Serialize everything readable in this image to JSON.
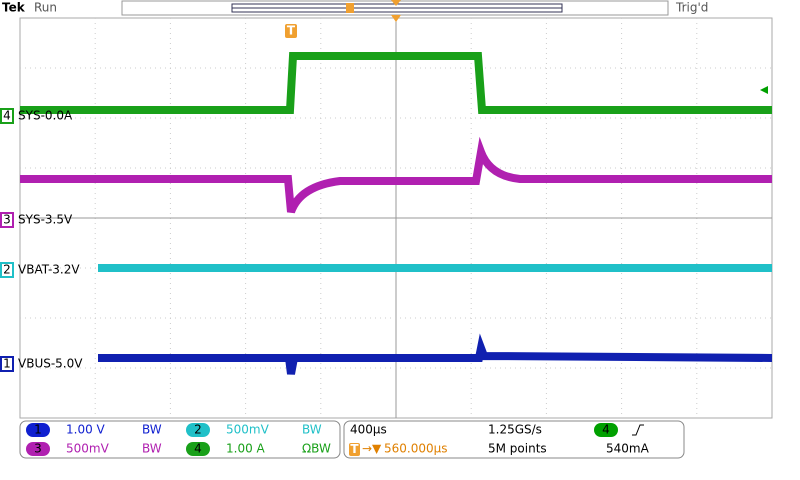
{
  "header": {
    "brand": "Tek",
    "status": "Run",
    "trigger_status": "Trig'd",
    "trigger_marker": "T"
  },
  "channel_markers": [
    {
      "number": "4",
      "label": "SYS-0.0A"
    },
    {
      "number": "3",
      "label": "SYS-3.5V"
    },
    {
      "number": "2",
      "label": "VBAT-3.2V"
    },
    {
      "number": "1",
      "label": "VBUS-5.0V"
    }
  ],
  "vertical": [
    {
      "number": "1",
      "scale": "1.00 V",
      "bw": "BW"
    },
    {
      "number": "2",
      "scale": "500mV",
      "bw": "BW"
    },
    {
      "number": "3",
      "scale": "500mV",
      "bw": "BW"
    },
    {
      "number": "4",
      "scale": "1.00 A",
      "bw": "ΩBW"
    }
  ],
  "horizontal": {
    "scale": "400µs",
    "sample_rate": "1.25GS/s",
    "trigger_marker": "T",
    "delay": "560.000µs",
    "record": "5M points",
    "trigger_source": "4",
    "trigger_level": "540mA"
  }
}
